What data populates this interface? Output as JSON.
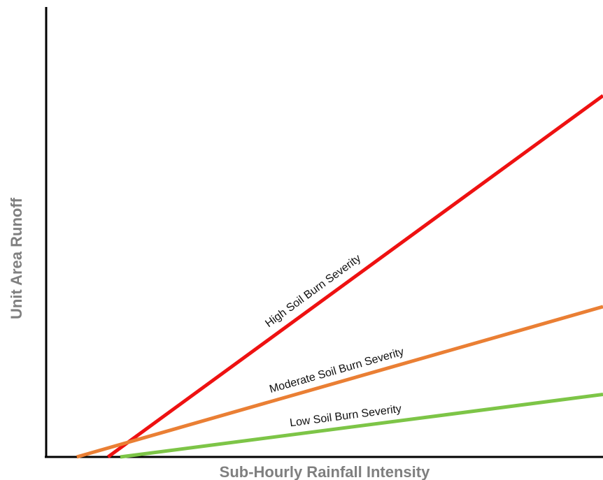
{
  "chart_data": {
    "type": "line",
    "title": "",
    "xlabel": "Sub-Hourly Rainfall Intensity",
    "ylabel": "Unit Area Runoff",
    "xlim": [
      0,
      100
    ],
    "ylim": [
      0,
      100
    ],
    "grid": false,
    "legend": "none",
    "series": [
      {
        "name": "High Soil Burn Severity",
        "color": "#ee1111",
        "x": [
          11.1,
          100
        ],
        "y": [
          0,
          80.3
        ]
      },
      {
        "name": "Moderate Soil Burn Severity",
        "color": "#ea7f34",
        "x": [
          5.5,
          100
        ],
        "y": [
          0,
          33.4
        ]
      },
      {
        "name": "Low Soil Burn Severity",
        "color": "#7dc547",
        "x": [
          13.3,
          100
        ],
        "y": [
          0,
          13.9
        ]
      }
    ]
  }
}
